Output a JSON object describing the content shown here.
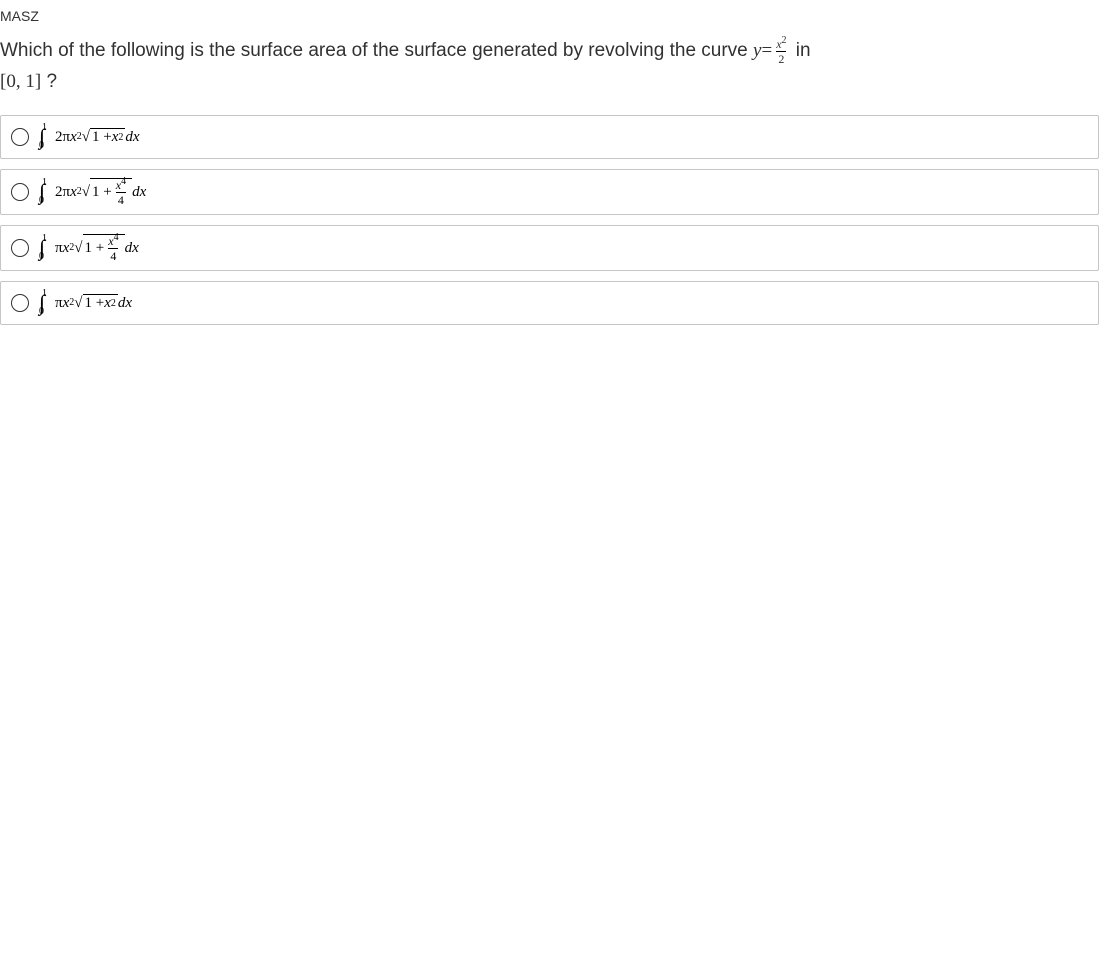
{
  "header": {
    "title": "MASZ"
  },
  "question": {
    "prefix": "Which of the following is the surface area of the surface generated by revolving the curve ",
    "y_eq": "y",
    "equals": " = ",
    "frac_num": "x",
    "frac_num_exp": "2",
    "frac_den": "2",
    "suffix_in": " in",
    "interval": "[0, 1]",
    "qmark": " ?"
  },
  "options": [
    {
      "coef": "2π",
      "xvar": "x",
      "xexp": "2",
      "sqrt_lead": "1 + ",
      "sqrt_x": "x",
      "sqrt_exp": "2",
      "has_frac": false,
      "dx": " dx"
    },
    {
      "coef": "2π",
      "xvar": "x",
      "xexp": "2",
      "sqrt_lead": "1 + ",
      "frac_num_x": "x",
      "frac_num_exp": "4",
      "frac_den": "4",
      "has_frac": true,
      "dx": " dx"
    },
    {
      "coef": "π",
      "xvar": "x",
      "xexp": "2",
      "sqrt_lead": "1 + ",
      "frac_num_x": "x",
      "frac_num_exp": "4",
      "frac_den": "4",
      "has_frac": true,
      "dx": " dx"
    },
    {
      "coef": "π",
      "xvar": "x",
      "xexp": "2",
      "sqrt_lead": "1 + ",
      "sqrt_x": "x",
      "sqrt_exp": "2",
      "has_frac": false,
      "dx": " dx"
    }
  ],
  "integral": {
    "lower": "0",
    "upper": "1"
  },
  "colors": {
    "text": "#323130",
    "border": "#c8c6c4",
    "bg": "#ffffff",
    "hover": "#f3f2f1"
  }
}
